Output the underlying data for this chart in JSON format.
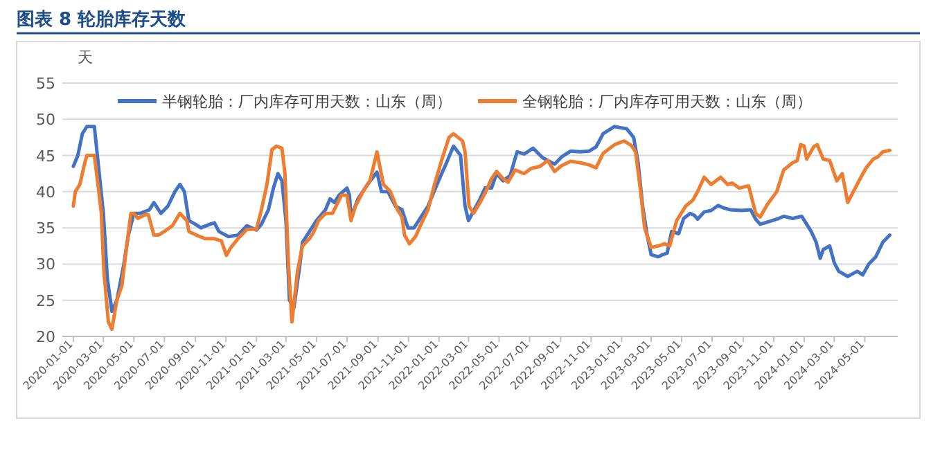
{
  "chart_data": {
    "type": "line",
    "title": "图表 8 轮胎库存天数",
    "ylabel": "天",
    "grid": "y",
    "legend": "top",
    "xlim": [
      "2019-12-10",
      "2024-07-06"
    ],
    "ylim": [
      20,
      55
    ],
    "yticks": [
      20,
      25,
      30,
      35,
      40,
      45,
      50,
      55
    ],
    "xticks": [
      "2020-01-01",
      "2020-03-01",
      "2020-05-01",
      "2020-07-01",
      "2020-09-01",
      "2020-11-01",
      "2021-01-01",
      "2021-03-01",
      "2021-05-01",
      "2021-07-01",
      "2021-09-01",
      "2021-11-01",
      "2022-01-01",
      "2022-03-01",
      "2022-05-01",
      "2022-07-01",
      "2022-09-01",
      "2022-11-01",
      "2023-01-01",
      "2023-03-01",
      "2023-05-01",
      "2023-07-01",
      "2023-09-01",
      "2023-11-01",
      "2024-01-01",
      "2024-03-01",
      "2024-05-01"
    ],
    "series": [
      {
        "name": "半钢轮胎：厂内库存可用天数：山东（周）",
        "color": "#4472c4",
        "x": [
          "2020-01-01",
          "2020-01-10",
          "2020-01-19",
          "2020-01-28",
          "2020-02-12",
          "2020-02-21",
          "2020-03-01",
          "2020-03-09",
          "2020-03-18",
          "2020-03-28",
          "2020-04-11",
          "2020-04-20",
          "2020-05-01",
          "2020-05-13",
          "2020-06-01",
          "2020-06-10",
          "2020-06-24",
          "2020-07-08",
          "2020-07-22",
          "2020-08-01",
          "2020-08-10",
          "2020-08-19",
          "2020-09-01",
          "2020-09-12",
          "2020-09-30",
          "2020-10-09",
          "2020-10-18",
          "2020-11-06",
          "2020-11-25",
          "2020-12-13",
          "2021-01-01",
          "2021-01-11",
          "2021-01-25",
          "2021-02-04",
          "2021-02-13",
          "2021-02-21",
          "2021-03-01",
          "2021-03-08",
          "2021-03-17",
          "2021-03-29",
          "2021-04-03",
          "2021-04-17",
          "2021-05-01",
          "2021-05-19",
          "2021-05-28",
          "2021-06-06",
          "2021-06-15",
          "2021-07-01",
          "2021-07-06",
          "2021-07-09",
          "2021-07-23",
          "2021-08-11",
          "2021-08-30",
          "2021-09-08",
          "2021-09-21",
          "2021-10-06",
          "2021-10-19",
          "2021-10-31",
          "2021-11-12",
          "2021-11-26",
          "2021-12-10",
          "2021-12-31",
          "2022-01-16",
          "2022-01-30",
          "2022-02-13",
          "2022-02-22",
          "2022-03-01",
          "2022-03-10",
          "2022-03-24",
          "2022-04-03",
          "2022-04-16",
          "2022-04-26",
          "2022-05-09",
          "2022-05-23",
          "2022-06-06",
          "2022-06-20",
          "2022-07-08",
          "2022-07-27",
          "2022-08-20",
          "2022-09-03",
          "2022-09-21",
          "2022-10-10",
          "2022-10-28",
          "2022-11-11",
          "2022-11-25",
          "2022-12-18",
          "2023-01-01",
          "2023-01-11",
          "2023-01-25",
          "2023-02-03",
          "2023-02-12",
          "2023-02-21",
          "2023-03-01",
          "2023-03-15",
          "2023-03-24",
          "2023-04-02",
          "2023-04-11",
          "2023-04-25",
          "2023-05-05",
          "2023-05-18",
          "2023-05-27",
          "2023-06-02",
          "2023-06-15",
          "2023-06-29",
          "2023-07-13",
          "2023-07-22",
          "2023-08-06",
          "2023-08-29",
          "2023-09-16",
          "2023-09-26",
          "2023-10-05",
          "2023-10-19",
          "2023-11-11",
          "2023-11-21",
          "2023-12-09",
          "2023-12-27",
          "2024-01-06",
          "2024-01-15",
          "2024-01-25",
          "2024-02-02",
          "2024-02-08",
          "2024-02-21",
          "2024-03-01",
          "2024-03-10",
          "2024-03-28",
          "2024-04-16",
          "2024-04-27",
          "2024-05-09",
          "2024-05-23",
          "2024-06-06",
          "2024-06-20"
        ],
        "values": [
          43.5,
          45,
          48,
          49,
          49,
          43,
          37,
          28,
          23.5,
          25,
          30,
          34,
          37,
          37,
          37.5,
          38.5,
          37,
          38,
          40,
          41,
          40,
          36,
          35.5,
          35,
          35.5,
          35.7,
          34.5,
          33.8,
          34,
          35.3,
          34.7,
          35.5,
          37.5,
          40.5,
          42.5,
          41.5,
          36,
          25,
          24,
          30,
          33,
          34.5,
          36,
          37.5,
          39,
          38.5,
          39.5,
          40.5,
          39.5,
          36.5,
          39,
          41,
          42.7,
          40,
          40,
          38,
          37.5,
          35,
          35,
          36.5,
          38,
          41.5,
          44,
          46.3,
          45,
          38,
          36,
          37.2,
          39,
          40.5,
          40.5,
          42.5,
          41.5,
          42.2,
          45.5,
          45.2,
          46,
          44.7,
          43.8,
          44.8,
          45.6,
          45.5,
          45.6,
          46.2,
          48,
          49,
          48.8,
          48.7,
          47.5,
          44,
          38,
          34,
          31.3,
          31,
          31.3,
          31.5,
          34.5,
          34.2,
          36.3,
          37,
          36.7,
          36.2,
          37.2,
          37.4,
          38.1,
          37.8,
          37.5,
          37.4,
          37.5,
          36.2,
          35.5,
          35.8,
          36.3,
          36.6,
          36.3,
          36.6,
          35.5,
          34.5,
          33,
          30.8,
          32,
          32.5,
          30.2,
          29,
          28.3,
          29,
          28.5,
          30,
          31,
          33,
          34
        ]
      },
      {
        "name": "全钢轮胎：厂内库存可用天数：山东（周）",
        "color": "#ed7d31",
        "x": [
          "2020-01-01",
          "2020-01-05",
          "2020-01-14",
          "2020-01-24",
          "2020-01-28",
          "2020-02-12",
          "2020-02-21",
          "2020-02-26",
          "2020-03-02",
          "2020-03-11",
          "2020-03-18",
          "2020-03-28",
          "2020-04-07",
          "2020-04-14",
          "2020-04-25",
          "2020-05-01",
          "2020-05-09",
          "2020-05-23",
          "2020-05-30",
          "2020-06-10",
          "2020-06-19",
          "2020-07-03",
          "2020-07-17",
          "2020-08-01",
          "2020-08-15",
          "2020-08-19",
          "2020-09-03",
          "2020-09-21",
          "2020-10-09",
          "2020-10-23",
          "2020-11-02",
          "2020-11-11",
          "2020-11-25",
          "2020-12-13",
          "2021-01-01",
          "2021-01-11",
          "2021-01-22",
          "2021-02-01",
          "2021-02-10",
          "2021-02-21",
          "2021-02-27",
          "2021-03-06",
          "2021-03-13",
          "2021-03-24",
          "2021-04-03",
          "2021-04-17",
          "2021-04-26",
          "2021-05-05",
          "2021-05-19",
          "2021-06-02",
          "2021-06-20",
          "2021-07-01",
          "2021-07-09",
          "2021-07-18",
          "2021-08-02",
          "2021-08-16",
          "2021-08-30",
          "2021-09-06",
          "2021-09-12",
          "2021-09-26",
          "2021-10-10",
          "2021-10-19",
          "2021-10-24",
          "2021-11-03",
          "2021-11-15",
          "2021-11-26",
          "2021-12-10",
          "2021-12-23",
          "2022-01-07",
          "2022-01-21",
          "2022-01-30",
          "2022-02-08",
          "2022-02-17",
          "2022-02-22",
          "2022-03-02",
          "2022-03-11",
          "2022-03-24",
          "2022-04-03",
          "2022-04-16",
          "2022-04-26",
          "2022-05-09",
          "2022-05-19",
          "2022-06-02",
          "2022-06-20",
          "2022-07-04",
          "2022-07-22",
          "2022-08-06",
          "2022-08-20",
          "2022-09-03",
          "2022-09-21",
          "2022-10-10",
          "2022-10-28",
          "2022-11-11",
          "2022-11-25",
          "2022-12-18",
          "2023-01-06",
          "2023-01-20",
          "2023-01-29",
          "2023-02-08",
          "2023-02-16",
          "2023-03-01",
          "2023-03-15",
          "2023-03-28",
          "2023-04-07",
          "2023-04-21",
          "2023-05-09",
          "2023-05-23",
          "2023-06-02",
          "2023-06-15",
          "2023-06-29",
          "2023-07-18",
          "2023-08-01",
          "2023-08-10",
          "2023-08-24",
          "2023-09-12",
          "2023-09-26",
          "2023-10-05",
          "2023-10-19",
          "2023-11-07",
          "2023-11-21",
          "2023-12-09",
          "2023-12-18",
          "2023-12-25",
          "2024-01-01",
          "2024-01-06",
          "2024-01-20",
          "2024-01-27",
          "2024-02-08",
          "2024-02-21",
          "2024-03-06",
          "2024-03-17",
          "2024-03-28",
          "2024-04-12",
          "2024-04-21",
          "2024-05-04",
          "2024-05-18",
          "2024-05-27",
          "2024-06-06",
          "2024-06-20"
        ],
        "values": [
          38,
          40,
          41,
          44,
          45,
          45,
          40,
          37,
          29,
          22,
          21,
          25,
          27,
          31,
          37,
          37,
          36.3,
          36.8,
          36.8,
          34,
          34,
          34.6,
          35.3,
          37,
          36,
          34.5,
          34,
          33.5,
          33.5,
          33.2,
          31.2,
          32.3,
          33.5,
          34.8,
          34.8,
          37.5,
          41,
          45.8,
          46.3,
          46,
          42.5,
          30,
          22,
          29,
          32.5,
          33.5,
          34.5,
          36,
          37,
          37,
          39.5,
          39.5,
          36,
          38,
          40,
          41.5,
          45.5,
          43,
          41,
          40,
          37.5,
          36.5,
          34,
          32.8,
          33.8,
          35.5,
          37.5,
          41,
          44.5,
          47.5,
          48,
          47.5,
          47,
          45.5,
          38,
          37,
          38.5,
          39.8,
          41.8,
          42.8,
          41.8,
          41.3,
          43,
          42.5,
          43.2,
          43.5,
          44.3,
          42.8,
          43.6,
          44.2,
          44,
          43.7,
          43.3,
          45.3,
          46.5,
          47,
          46.4,
          45.5,
          40,
          35,
          32.3,
          32.5,
          32.8,
          32.5,
          36,
          38,
          38.8,
          40,
          42,
          41,
          42,
          41,
          41.2,
          40.5,
          40.8,
          37,
          36.5,
          38.2,
          40,
          43,
          44,
          44.3,
          46.5,
          46.3,
          44.5,
          46.2,
          46.5,
          44.5,
          44.3,
          41.5,
          42.5,
          38.5,
          40.5,
          41.7,
          43.3,
          44.5,
          44.8,
          45.5,
          45.7
        ]
      }
    ]
  }
}
